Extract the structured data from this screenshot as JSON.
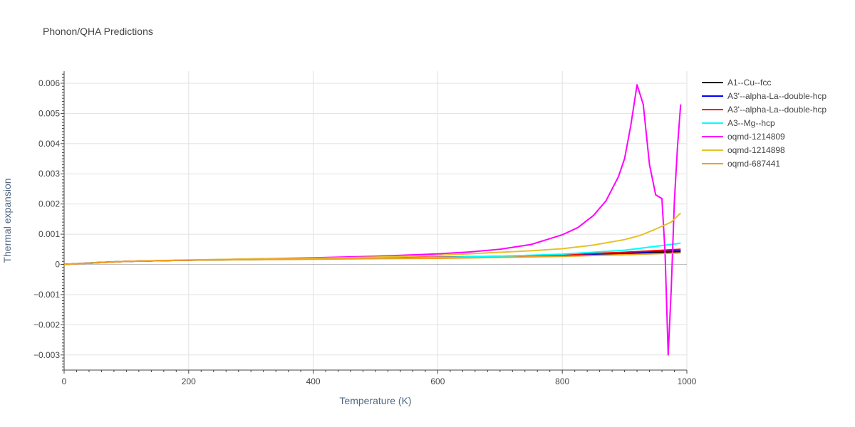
{
  "chart_data": {
    "type": "line",
    "title": "Phonon/QHA Predictions",
    "xlabel": "Temperature (K)",
    "ylabel": "Thermal expansion",
    "xlim": [
      0,
      1000
    ],
    "ylim": [
      -0.0035,
      0.0064
    ],
    "x_ticks": [
      0,
      200,
      400,
      600,
      800,
      1000
    ],
    "x_tick_labels": [
      "0",
      "200",
      "400",
      "600",
      "800",
      "1000"
    ],
    "y_ticks": [
      -0.003,
      -0.002,
      -0.001,
      0,
      0.001,
      0.002,
      0.003,
      0.004,
      0.005,
      0.006
    ],
    "y_tick_labels": [
      "−0.003",
      "−0.002",
      "−0.001",
      "0",
      "0.001",
      "0.002",
      "0.003",
      "0.004",
      "0.005",
      "0.006"
    ],
    "grid": true,
    "legend_position": "right",
    "series": [
      {
        "name": "A1--Cu--fcc",
        "color": "#000000",
        "x": [
          0,
          50,
          100,
          200,
          300,
          400,
          500,
          600,
          700,
          800,
          900,
          990
        ],
        "y": [
          0,
          5e-05,
          0.0001,
          0.00014,
          0.00016,
          0.00018,
          0.0002,
          0.00022,
          0.00025,
          0.0003,
          0.00036,
          0.00042
        ]
      },
      {
        "name": "A3'--alpha-La--double-hcp",
        "color": "#0000ff",
        "x": [
          0,
          50,
          100,
          200,
          300,
          400,
          500,
          600,
          700,
          800,
          900,
          990
        ],
        "y": [
          0,
          6e-05,
          0.0001,
          0.00014,
          0.00017,
          0.00019,
          0.00021,
          0.00023,
          0.00026,
          0.00031,
          0.00038,
          0.00047
        ]
      },
      {
        "name": "A3'--alpha-La--double-hcp",
        "color": "#ff0000",
        "x": [
          0,
          50,
          100,
          200,
          300,
          400,
          500,
          600,
          700,
          800,
          900,
          990
        ],
        "y": [
          0,
          6e-05,
          0.0001,
          0.00014,
          0.00017,
          0.00019,
          0.00021,
          0.00024,
          0.00027,
          0.00032,
          0.0004,
          0.0005
        ]
      },
      {
        "name": "A3--Mg--hcp",
        "color": "#00ffff",
        "x": [
          0,
          50,
          100,
          200,
          300,
          400,
          500,
          600,
          700,
          800,
          900,
          990
        ],
        "y": [
          0,
          6e-05,
          0.0001,
          0.00014,
          0.00016,
          0.00018,
          0.0002,
          0.00023,
          0.00027,
          0.00034,
          0.00047,
          0.0007
        ]
      },
      {
        "name": "oqmd-1214809",
        "color": "#ff00ff",
        "x": [
          0,
          50,
          100,
          200,
          300,
          400,
          500,
          600,
          650,
          700,
          750,
          800,
          825,
          850,
          870,
          890,
          900,
          910,
          920,
          930,
          940,
          950,
          960,
          965,
          970,
          975,
          980,
          985,
          990
        ],
        "y": [
          0,
          5e-05,
          0.0001,
          0.00014,
          0.00018,
          0.00022,
          0.00027,
          0.00035,
          0.00041,
          0.0005,
          0.00066,
          0.00098,
          0.00122,
          0.00162,
          0.0021,
          0.0029,
          0.0035,
          0.0046,
          0.00595,
          0.0053,
          0.0033,
          0.0023,
          0.00218,
          0.0004,
          -0.003,
          -0.0008,
          0.0021,
          0.0039,
          0.0053
        ]
      },
      {
        "name": "oqmd-1214898",
        "color": "#e5c12a",
        "x": [
          0,
          50,
          100,
          200,
          300,
          400,
          500,
          600,
          700,
          750,
          800,
          850,
          900,
          925,
          950,
          975,
          990
        ],
        "y": [
          0,
          5e-05,
          0.0001,
          0.00015,
          0.00018,
          0.0002,
          0.00024,
          0.0003,
          0.0004,
          0.00045,
          0.00052,
          0.00064,
          0.00082,
          0.00096,
          0.00117,
          0.0014,
          0.0017
        ]
      },
      {
        "name": "oqmd-687441",
        "color": "#f0a020",
        "x": [
          0,
          50,
          100,
          200,
          300,
          400,
          500,
          600,
          700,
          800,
          900,
          990
        ],
        "y": [
          0,
          5e-05,
          0.0001,
          0.00014,
          0.00016,
          0.00017,
          0.00019,
          0.0002,
          0.00023,
          0.00027,
          0.00032,
          0.00038
        ]
      }
    ]
  }
}
